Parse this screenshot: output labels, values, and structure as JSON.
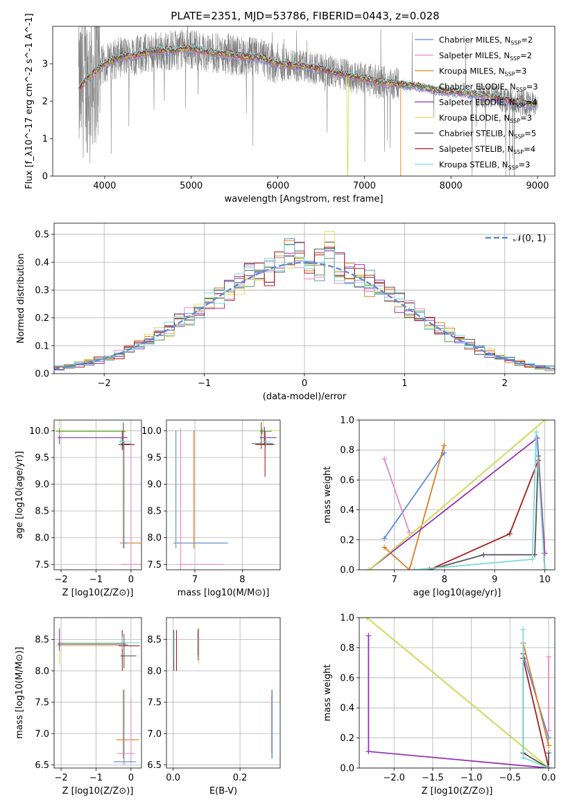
{
  "title": "PLATE=2351, MJD=53786, FIBERID=0443, z=0.028",
  "series_styles": [
    {
      "name": "Chabrier MILES",
      "nssp": "2",
      "color": "#5b8bd6"
    },
    {
      "name": "Salpeter MILES",
      "nssp": "2",
      "color": "#e88ac4"
    },
    {
      "name": "Kroupa MILES",
      "nssp": "3",
      "color": "#e07b21"
    },
    {
      "name": "Chabrier ELODIE",
      "nssp": "3",
      "color": "#4f9a58"
    },
    {
      "name": "Salpeter ELODIE",
      "nssp": "4",
      "color": "#9532b2"
    },
    {
      "name": "Kroupa ELODIE",
      "nssp": "3",
      "color": "#d7e056"
    },
    {
      "name": "Chabrier STELIB",
      "nssp": "5",
      "color": "#555555"
    },
    {
      "name": "Salpeter STELIB",
      "nssp": "4",
      "color": "#a51b1b"
    },
    {
      "name": "Kroupa STELIB",
      "nssp": "3",
      "color": "#7dd9d9"
    }
  ],
  "chart_data": [
    {
      "type": "line",
      "id": "spectrum",
      "xlabel": "wavelength [Angstrom, rest frame]",
      "ylabel": "Flux [f_λ10^-17 erg cm^-2 s^-1 A^-1]",
      "xlim": [
        3400,
        9200
      ],
      "ylim": [
        0,
        4.0
      ],
      "xticks": [
        4000,
        5000,
        6000,
        7000,
        8000,
        9000
      ],
      "yticks": [
        0,
        1,
        2,
        3
      ],
      "legend_position": "top-right",
      "observed_continuum": {
        "x": [
          3700,
          3800,
          3900,
          4000,
          4100,
          4200,
          4300,
          4400,
          4500,
          4600,
          4700,
          4800,
          4900,
          5000,
          5200,
          5400,
          5600,
          5800,
          6000,
          6200,
          6400,
          6600,
          6800,
          7000,
          7200,
          7400,
          7600,
          7800,
          8000,
          8200,
          8400,
          8600,
          8800,
          9000
        ],
        "y": [
          2.3,
          2.6,
          2.8,
          3.0,
          3.1,
          3.2,
          3.2,
          3.25,
          3.3,
          3.35,
          3.35,
          3.35,
          3.4,
          3.4,
          3.3,
          3.25,
          3.2,
          3.15,
          3.0,
          2.95,
          2.9,
          2.8,
          2.7,
          2.6,
          2.5,
          2.45,
          2.4,
          2.3,
          2.25,
          2.2,
          2.15,
          2.05,
          1.95,
          1.9
        ]
      }
    },
    {
      "type": "bar",
      "id": "residuals",
      "xlabel": "(data-model)/error",
      "ylabel": "Normed distribution",
      "xlim": [
        -2.5,
        2.5
      ],
      "ylim": [
        0,
        0.54
      ],
      "xticks": [
        -2,
        -1,
        0,
        1,
        2
      ],
      "yticks": [
        0.0,
        0.1,
        0.2,
        0.3,
        0.4,
        0.5
      ],
      "legend": "𝒩(0, 1)",
      "legend_position": "top-right",
      "bin_width": 0.1
    },
    {
      "type": "scatter",
      "id": "age-vs-Z",
      "xlabel": "Z [log10(Z/Z⊙)]",
      "ylabel": "age [log10(age/yr)]",
      "xlim": [
        -2.2,
        0.3
      ],
      "ylim": [
        7.4,
        10.2
      ],
      "xticks": [
        -2,
        -1,
        0
      ],
      "yticks": [
        7.5,
        8.0,
        8.5,
        9.0,
        9.5,
        10.0
      ]
    },
    {
      "type": "scatter",
      "id": "age-vs-mass",
      "xlabel": "mass [log10(M/M⊙)]",
      "ylabel": "",
      "xlim": [
        6.4,
        8.8
      ],
      "ylim": [
        7.4,
        10.2
      ],
      "xticks": [
        7,
        8
      ],
      "yticks": [
        7.5,
        8.0,
        8.5,
        9.0,
        9.5,
        10.0
      ]
    },
    {
      "type": "line",
      "id": "mass-weight-vs-age",
      "xlabel": "age [log10(age/yr)]",
      "ylabel": "mass weight",
      "xlim": [
        6.3,
        10.2
      ],
      "ylim": [
        0,
        1.0
      ],
      "xticks": [
        7,
        8,
        9,
        10
      ],
      "yticks": [
        0.0,
        0.2,
        0.4,
        0.6,
        0.8,
        1.0
      ],
      "series": [
        {
          "name": "Chabrier MILES",
          "x": [
            6.8,
            7.99
          ],
          "y": [
            0.21,
            0.78
          ]
        },
        {
          "name": "Salpeter MILES",
          "x": [
            6.8,
            7.3
          ],
          "y": [
            0.74,
            0.25
          ]
        },
        {
          "name": "Kroupa MILES",
          "x": [
            6.8,
            7.3,
            7.99
          ],
          "y": [
            0.15,
            0.0,
            0.83
          ]
        },
        {
          "name": "Chabrier ELODIE",
          "x": [
            6.5,
            10.0
          ],
          "y": [
            0.0,
            1.0
          ]
        },
        {
          "name": "Salpeter ELODIE",
          "x": [
            6.5,
            9.85,
            10.0
          ],
          "y": [
            0.0,
            0.88,
            0.11
          ]
        },
        {
          "name": "Kroupa ELODIE",
          "x": [
            6.5,
            10.0
          ],
          "y": [
            0.0,
            1.0
          ]
        },
        {
          "name": "Chabrier STELIB",
          "x": [
            7.7,
            8.78,
            9.8,
            9.87,
            10.0
          ],
          "y": [
            0.0,
            0.1,
            0.1,
            0.76,
            0.0
          ]
        },
        {
          "name": "Salpeter STELIB",
          "x": [
            7.7,
            9.3,
            9.87,
            10.0
          ],
          "y": [
            0.0,
            0.24,
            0.73,
            0.0
          ]
        },
        {
          "name": "Kroupa STELIB",
          "x": [
            7.4,
            9.75,
            9.83,
            10.0
          ],
          "y": [
            0.0,
            0.07,
            0.92,
            0.0
          ]
        }
      ]
    },
    {
      "type": "scatter",
      "id": "mass-vs-Z",
      "xlabel": "Z [log10(Z/Z⊙)]",
      "ylabel": "mass [log10(M/M⊙)]",
      "xlim": [
        -2.2,
        0.3
      ],
      "ylim": [
        6.45,
        8.85
      ],
      "xticks": [
        -2,
        -1,
        0
      ],
      "yticks": [
        6.5,
        7.0,
        7.5,
        8.0,
        8.5
      ]
    },
    {
      "type": "scatter",
      "id": "mass-vs-EBV",
      "xlabel": "E(B-V)",
      "ylabel": "",
      "xlim": [
        -0.02,
        0.32
      ],
      "ylim": [
        6.45,
        8.85
      ],
      "xticks": [
        0.0,
        0.2
      ],
      "yticks": [
        6.5,
        7.0,
        7.5,
        8.0,
        8.5
      ]
    },
    {
      "type": "line",
      "id": "mass-weight-vs-Z",
      "xlabel": "Z [log10(Z/Z⊙)]",
      "ylabel": "mass weight",
      "xlim": [
        -2.45,
        0.08
      ],
      "ylim": [
        0,
        1.0
      ],
      "xticks": [
        -2.0,
        -1.5,
        -1.0,
        -0.5,
        0.0
      ],
      "yticks": [
        0.0,
        0.2,
        0.4,
        0.6,
        0.8,
        1.0
      ],
      "series": [
        {
          "name": "Chabrier MILES",
          "x": [
            -0.33,
            0.0
          ],
          "y": [
            0.76,
            0.2
          ]
        },
        {
          "name": "Salpeter MILES",
          "x": [
            0.0,
            0.0
          ],
          "y": [
            0.25,
            0.74
          ]
        },
        {
          "name": "Kroupa MILES",
          "x": [
            -0.33,
            0.0
          ],
          "y": [
            0.83,
            0.15
          ]
        },
        {
          "name": "Chabrier ELODIE",
          "x": [
            -2.35,
            0.0
          ],
          "y": [
            1.0,
            0.0
          ]
        },
        {
          "name": "Salpeter ELODIE",
          "x": [
            -2.33,
            -2.33,
            0.0
          ],
          "y": [
            0.88,
            0.11,
            0.0
          ]
        },
        {
          "name": "Kroupa ELODIE",
          "x": [
            -2.35,
            0.0
          ],
          "y": [
            1.0,
            0.0
          ]
        },
        {
          "name": "Chabrier STELIB",
          "x": [
            -0.33,
            -0.33,
            0.0,
            0.0
          ],
          "y": [
            0.76,
            0.1,
            0.0,
            0.1
          ]
        },
        {
          "name": "Salpeter STELIB",
          "x": [
            -0.33,
            0.0
          ],
          "y": [
            0.73,
            0.0
          ]
        },
        {
          "name": "Kroupa STELIB",
          "x": [
            -0.33,
            -0.33,
            0.0
          ],
          "y": [
            0.92,
            0.07,
            0.0
          ]
        }
      ]
    }
  ]
}
